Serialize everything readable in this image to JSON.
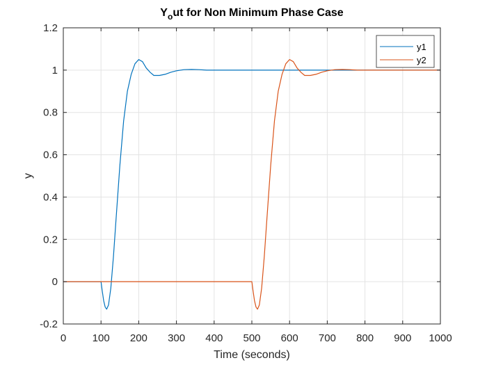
{
  "chart_data": {
    "type": "line",
    "title": "Y",
    "title_subscript": "o",
    "title_rest": "ut for Non Minimum Phase Case",
    "xlabel": "Time (seconds)",
    "ylabel": "y",
    "xlim": [
      0,
      1000
    ],
    "ylim": [
      -0.2,
      1.2
    ],
    "xticks": [
      0,
      100,
      200,
      300,
      400,
      500,
      600,
      700,
      800,
      900,
      1000
    ],
    "yticks": [
      -0.2,
      0,
      0.2,
      0.4,
      0.6,
      0.8,
      1,
      1.2
    ],
    "xtick_labels": [
      "0",
      "100",
      "200",
      "300",
      "400",
      "500",
      "600",
      "700",
      "800",
      "900",
      "1000"
    ],
    "ytick_labels": [
      "-0.2",
      "0",
      "0.2",
      "0.4",
      "0.6",
      "0.8",
      "1",
      "1.2"
    ],
    "grid": true,
    "legend_position": "top-right",
    "series": [
      {
        "name": "y1",
        "color": "#0072BD",
        "x": [
          0,
          100,
          103,
          107,
          111,
          115,
          120,
          126,
          133,
          140,
          150,
          160,
          170,
          180,
          190,
          200,
          210,
          220,
          230,
          240,
          255,
          270,
          285,
          300,
          320,
          340,
          360,
          380,
          400,
          450,
          500,
          550,
          600,
          650,
          700,
          750,
          800,
          850,
          900,
          950,
          1000
        ],
        "y": [
          0,
          0,
          -0.04,
          -0.09,
          -0.12,
          -0.13,
          -0.11,
          -0.03,
          0.12,
          0.3,
          0.55,
          0.76,
          0.9,
          0.98,
          1.03,
          1.05,
          1.04,
          1.01,
          0.99,
          0.975,
          0.975,
          0.98,
          0.99,
          0.997,
          1.002,
          1.003,
          1.002,
          1.0,
          1.0,
          1.0,
          1.0,
          1.0,
          1.0,
          1.0,
          1.0,
          1.0,
          1.0,
          1.0,
          1.0,
          1.0,
          1.0
        ]
      },
      {
        "name": "y2",
        "color": "#D95319",
        "x": [
          0,
          500,
          503,
          507,
          511,
          515,
          520,
          526,
          533,
          540,
          550,
          560,
          570,
          580,
          590,
          600,
          610,
          620,
          630,
          640,
          655,
          670,
          685,
          700,
          720,
          740,
          760,
          780,
          800,
          850,
          900,
          950,
          1000
        ],
        "y": [
          0,
          0,
          -0.04,
          -0.09,
          -0.12,
          -0.13,
          -0.11,
          -0.03,
          0.12,
          0.3,
          0.55,
          0.76,
          0.9,
          0.98,
          1.03,
          1.05,
          1.04,
          1.01,
          0.99,
          0.975,
          0.975,
          0.98,
          0.99,
          0.997,
          1.002,
          1.003,
          1.002,
          1.0,
          1.0,
          1.0,
          1.0,
          1.0,
          1.0
        ]
      }
    ]
  }
}
